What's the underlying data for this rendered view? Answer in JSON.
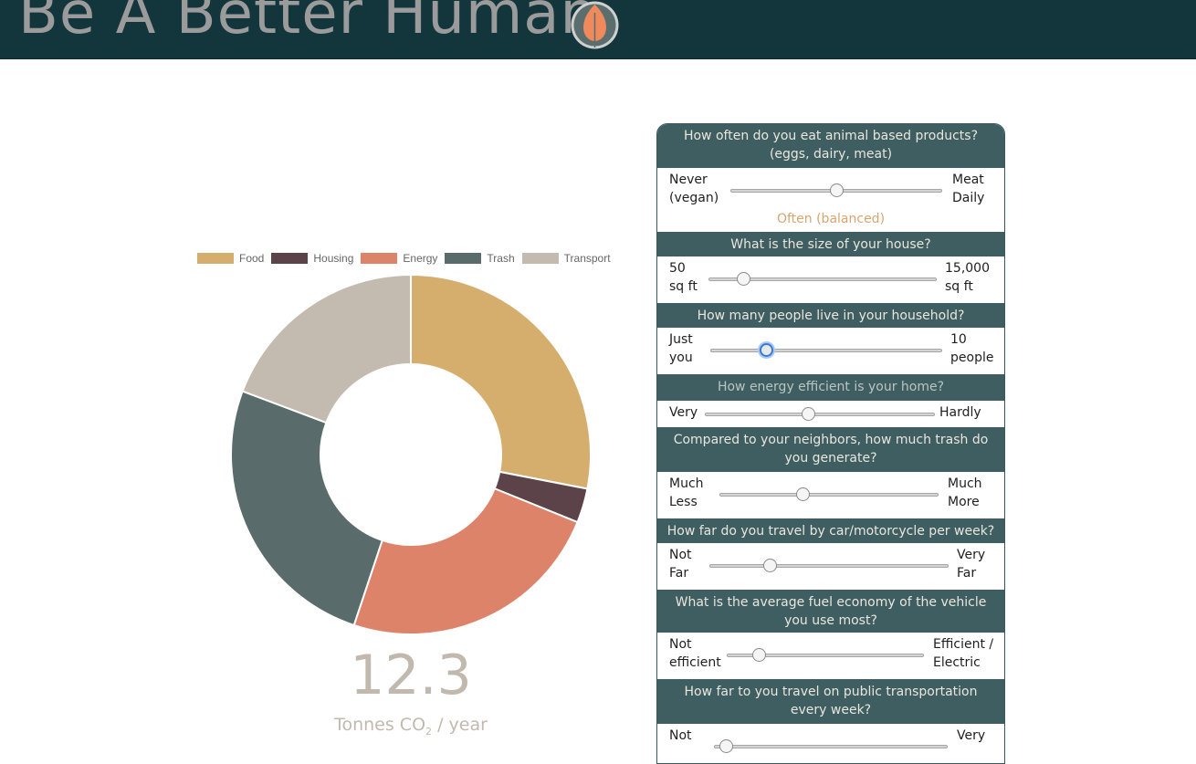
{
  "header": {
    "brand": "Be A Better Human",
    "logo_icon": "leaf-icon",
    "background": "#12363b"
  },
  "chart_data": {
    "type": "doughnut",
    "categories": [
      "Food",
      "Housing",
      "Energy",
      "Trash",
      "Transport"
    ],
    "values": [
      3.45,
      0.38,
      2.95,
      3.15,
      2.37
    ],
    "colors": [
      "#d5ad6d",
      "#5c4349",
      "#dd836a",
      "#596b6b",
      "#c4bbb0"
    ],
    "legend_position": "top",
    "total": "12.3",
    "unit_main": "Tonnes CO",
    "unit_sub": "2",
    "unit_tail": " / year"
  },
  "questions": [
    {
      "title": "How often do you eat animal based products? (eggs, dairy, meat)",
      "min_label": "Never\n(vegan)",
      "max_label": "Meat\nDaily",
      "value": 0.5,
      "value_label": "Often (balanced)"
    },
    {
      "title": "What is the size of your house?",
      "min_label": "50\nsq ft",
      "max_label": "15,000\nsq ft",
      "value": 0.15
    },
    {
      "title": "How many people live in your household?",
      "min_label": "Just\nyou",
      "max_label": "10\npeople",
      "value": 0.24
    },
    {
      "title": "How energy efficient is your home?",
      "min_label": "Very",
      "max_label": "Hardly",
      "value": 0.45
    },
    {
      "title": "Compared to your neighbors, how much trash do you generate?",
      "min_label": "Much\nLess",
      "max_label": "Much\nMore",
      "value": 0.38
    },
    {
      "title": "How far do you travel by car/motorcycle per week?",
      "min_label": "Not\nFar",
      "max_label": "Very\nFar",
      "value": 0.25
    },
    {
      "title": "What is the average fuel economy of the vehicle you use most?",
      "min_label": "Not\nefficient",
      "max_label": "Efficient /\nElectric",
      "value": 0.16
    },
    {
      "title": "How far to you travel on public transportation every week?",
      "min_label": "Not",
      "max_label": "Very",
      "value": 0.05
    }
  ]
}
